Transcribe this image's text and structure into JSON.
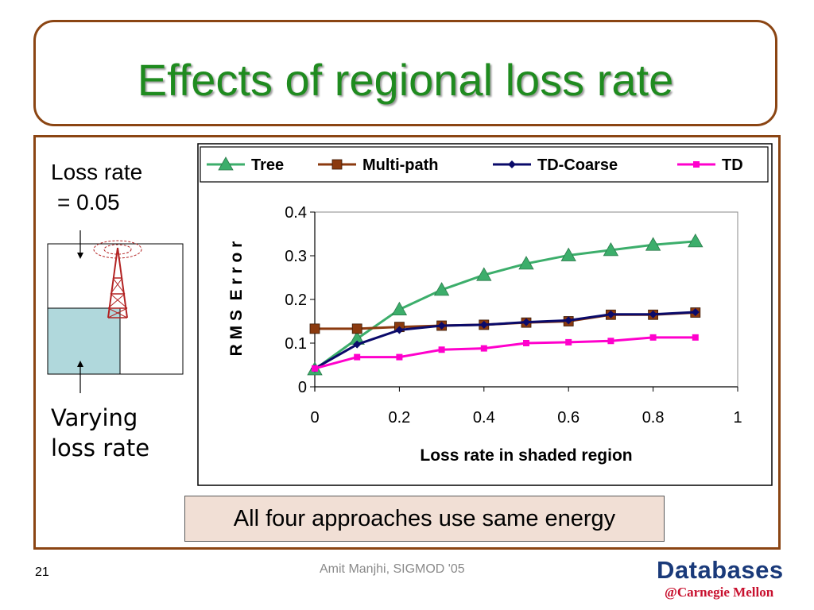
{
  "slide": {
    "title": "Effects of regional loss rate",
    "loss_rate_line1": "Loss rate",
    "loss_rate_line2": "= 0.05",
    "varying_line1": "Varying",
    "varying_line2": "loss rate",
    "callout": "All four approaches use same energy",
    "page_number": "21",
    "author": "Amit Manjhi, SIGMOD '05",
    "logo_text": "Databases",
    "logo_subtext": "@Carnegie Mellon",
    "colors": {
      "title": "#1f8b1f",
      "border": "#8b4513",
      "shaded_region": "#b0d8dc",
      "tower": "#b22222"
    }
  },
  "chart_data": {
    "type": "line",
    "xlabel": "Loss rate in shaded region",
    "ylabel": "R M S  E r r o r",
    "xlim": [
      0,
      1
    ],
    "ylim": [
      0,
      0.4
    ],
    "x_ticks": [
      "0",
      "0.2",
      "0.4",
      "0.6",
      "0.8",
      "1"
    ],
    "y_ticks": [
      "0",
      "0.1",
      "0.2",
      "0.3",
      "0.4"
    ],
    "legend_position": "top",
    "grid": false,
    "x": [
      0,
      0.1,
      0.2,
      0.3,
      0.4,
      0.5,
      0.6,
      0.7,
      0.8,
      0.9
    ],
    "series": [
      {
        "name": "Tree",
        "color": "#3cae6b",
        "marker": "triangle",
        "values": [
          0.04,
          0.11,
          0.177,
          0.222,
          0.256,
          0.282,
          0.301,
          0.313,
          0.325,
          0.333
        ]
      },
      {
        "name": "Multi-path",
        "color": "#8b3a0f",
        "marker": "square",
        "values": [
          0.133,
          0.133,
          0.137,
          0.14,
          0.142,
          0.147,
          0.15,
          0.165,
          0.165,
          0.17
        ]
      },
      {
        "name": "TD-Coarse",
        "color": "#0a0a6a",
        "marker": "diamond",
        "values": [
          0.042,
          0.097,
          0.13,
          0.14,
          0.142,
          0.148,
          0.152,
          0.166,
          0.166,
          0.171
        ]
      },
      {
        "name": "TD",
        "color": "#ff00cc",
        "marker": "square-small",
        "values": [
          0.042,
          0.068,
          0.068,
          0.085,
          0.088,
          0.1,
          0.102,
          0.105,
          0.113,
          0.113
        ]
      }
    ]
  }
}
